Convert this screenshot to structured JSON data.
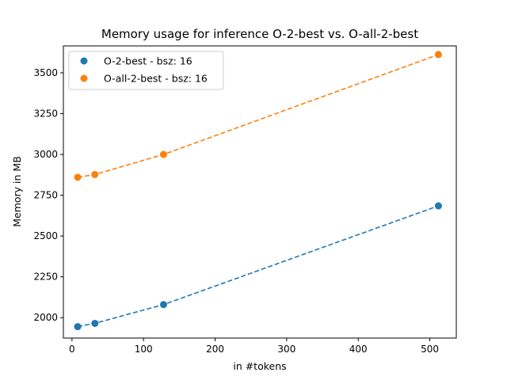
{
  "chart_data": {
    "type": "scatter",
    "title": "Memory usage for inference O-2-best vs. O-all-2-best",
    "xlabel": "in #tokens",
    "ylabel": "Memory in MB",
    "xlim": [
      -12,
      537
    ],
    "ylim": [
      1875,
      3665
    ],
    "xticks": [
      0,
      100,
      200,
      300,
      400,
      500
    ],
    "yticks": [
      2000,
      2250,
      2500,
      2750,
      3000,
      3250,
      3500
    ],
    "grid": false,
    "legend": "top-left",
    "series": [
      {
        "name": "O-2-best - bsz: 16",
        "color": "#1f77b4",
        "x": [
          8,
          32,
          128,
          512
        ],
        "y": [
          1945,
          1965,
          2080,
          2685
        ]
      },
      {
        "name": "O-all-2-best - bsz: 16",
        "color": "#ff7f0e",
        "x": [
          8,
          32,
          128,
          512
        ],
        "y": [
          2860,
          2877,
          3000,
          3612
        ]
      }
    ]
  }
}
